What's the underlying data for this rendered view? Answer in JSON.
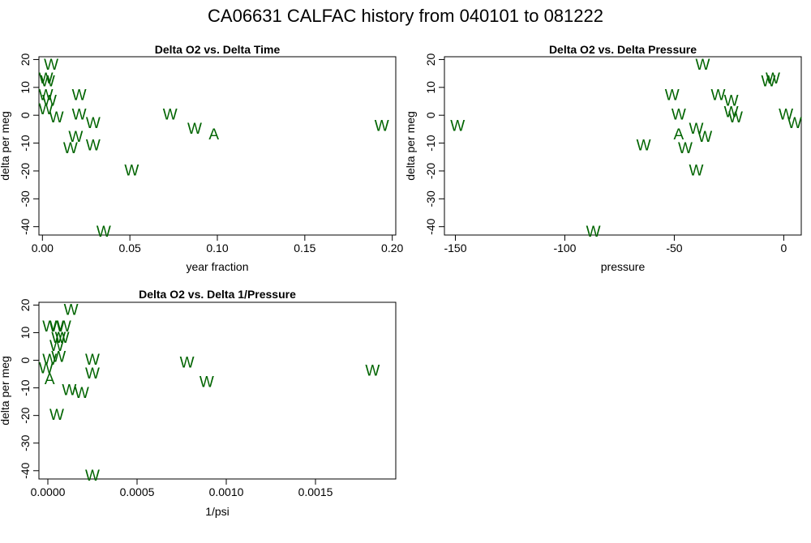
{
  "title": "CA06631   CALFAC history from  040101  to  081222",
  "colors": {
    "points": "#006400",
    "axes": "#000000"
  },
  "chart_data": [
    {
      "type": "scatter",
      "title": "Delta O2 vs. Delta Time",
      "xlabel": "year fraction",
      "ylabel": "delta per meg",
      "xlim": [
        -0.002,
        0.202
      ],
      "ylim": [
        -43,
        21
      ],
      "xticks": [
        0.0,
        0.05,
        0.1,
        0.15,
        0.2
      ],
      "xtick_labels": [
        "0.00",
        "0.05",
        "0.10",
        "0.15",
        "0.20"
      ],
      "yticks": [
        -40,
        -30,
        -20,
        -10,
        0,
        10,
        20
      ],
      "ytick_labels": [
        "-40",
        "-30",
        "-20",
        "-10",
        "0",
        "10",
        "20"
      ],
      "points": [
        {
          "x": 0.005,
          "y": 18,
          "label": "W"
        },
        {
          "x": 0.002,
          "y": 13,
          "label": "W"
        },
        {
          "x": 0.003,
          "y": 12,
          "label": "W"
        },
        {
          "x": 0.002,
          "y": 7,
          "label": "W"
        },
        {
          "x": 0.004,
          "y": 5,
          "label": "W"
        },
        {
          "x": 0.002,
          "y": 2,
          "label": "W"
        },
        {
          "x": 0.008,
          "y": -1,
          "label": "W"
        },
        {
          "x": 0.021,
          "y": 7,
          "label": "W"
        },
        {
          "x": 0.021,
          "y": 0,
          "label": "W"
        },
        {
          "x": 0.029,
          "y": -3,
          "label": "W"
        },
        {
          "x": 0.019,
          "y": -8,
          "label": "W"
        },
        {
          "x": 0.016,
          "y": -12,
          "label": "W"
        },
        {
          "x": 0.029,
          "y": -11,
          "label": "W"
        },
        {
          "x": 0.051,
          "y": -20,
          "label": "W"
        },
        {
          "x": 0.035,
          "y": -42,
          "label": "W"
        },
        {
          "x": 0.073,
          "y": 0,
          "label": "W"
        },
        {
          "x": 0.087,
          "y": -5,
          "label": "W"
        },
        {
          "x": 0.098,
          "y": -7,
          "label": "A"
        },
        {
          "x": 0.194,
          "y": -4,
          "label": "W"
        }
      ]
    },
    {
      "type": "scatter",
      "title": "Delta O2 vs. Delta Pressure",
      "xlabel": "pressure",
      "ylabel": "delta per meg",
      "xlim": [
        -155,
        8
      ],
      "ylim": [
        -43,
        21
      ],
      "xticks": [
        -150,
        -100,
        -50,
        0
      ],
      "xtick_labels": [
        "-150",
        "-100",
        "-50",
        "0"
      ],
      "yticks": [
        -40,
        -30,
        -20,
        -10,
        0,
        10,
        20
      ],
      "ytick_labels": [
        "-40",
        "-30",
        "-20",
        "-10",
        "0",
        "10",
        "20"
      ],
      "points": [
        {
          "x": -149,
          "y": -4,
          "label": "W"
        },
        {
          "x": -87,
          "y": -42,
          "label": "W"
        },
        {
          "x": -64,
          "y": -11,
          "label": "W"
        },
        {
          "x": -51,
          "y": 7,
          "label": "W"
        },
        {
          "x": -48,
          "y": 0,
          "label": "W"
        },
        {
          "x": -48,
          "y": -7,
          "label": "A"
        },
        {
          "x": -45,
          "y": -12,
          "label": "W"
        },
        {
          "x": -40,
          "y": -5,
          "label": "W"
        },
        {
          "x": -40,
          "y": -20,
          "label": "W"
        },
        {
          "x": -36,
          "y": -8,
          "label": "W"
        },
        {
          "x": -37,
          "y": 18,
          "label": "W"
        },
        {
          "x": -30,
          "y": 7,
          "label": "W"
        },
        {
          "x": -24,
          "y": 5,
          "label": "W"
        },
        {
          "x": -24,
          "y": 1,
          "label": "W"
        },
        {
          "x": -22,
          "y": -1,
          "label": "W"
        },
        {
          "x": -7,
          "y": 12,
          "label": "W"
        },
        {
          "x": -5,
          "y": 13,
          "label": "W"
        },
        {
          "x": 1,
          "y": 0,
          "label": "W"
        },
        {
          "x": 5,
          "y": -3,
          "label": "W"
        }
      ]
    },
    {
      "type": "scatter",
      "title": "Delta O2 vs. Delta 1/Pressure",
      "xlabel": "1/psi",
      "ylabel": "delta per meg",
      "xlim": [
        -5e-05,
        0.00195
      ],
      "ylim": [
        -43,
        21
      ],
      "xticks": [
        0.0,
        0.0005,
        0.001,
        0.0015
      ],
      "xtick_labels": [
        "0.0000",
        "0.0005",
        "0.0010",
        "0.0015"
      ],
      "yticks": [
        -40,
        -30,
        -20,
        -10,
        0,
        10,
        20
      ],
      "ytick_labels": [
        "-40",
        "-30",
        "-20",
        "-10",
        "0",
        "10",
        "20"
      ],
      "points": [
        {
          "x": 0.00013,
          "y": 18,
          "label": "W"
        },
        {
          "x": 1e-05,
          "y": 12,
          "label": "W"
        },
        {
          "x": 5e-05,
          "y": 12,
          "label": "W"
        },
        {
          "x": 9e-05,
          "y": 12,
          "label": "W"
        },
        {
          "x": 6e-05,
          "y": 8,
          "label": "W"
        },
        {
          "x": 8e-05,
          "y": 8,
          "label": "W"
        },
        {
          "x": 5e-05,
          "y": 5,
          "label": "W"
        },
        {
          "x": 1e-05,
          "y": 0,
          "label": "W"
        },
        {
          "x": 6e-05,
          "y": 1,
          "label": "W"
        },
        {
          "x": -1e-05,
          "y": -3,
          "label": "W"
        },
        {
          "x": 1e-05,
          "y": -7,
          "label": "A"
        },
        {
          "x": 0.00012,
          "y": -11,
          "label": "W"
        },
        {
          "x": 0.00019,
          "y": -12,
          "label": "W"
        },
        {
          "x": 5e-05,
          "y": -20,
          "label": "W"
        },
        {
          "x": 0.00025,
          "y": 0,
          "label": "W"
        },
        {
          "x": 0.00025,
          "y": -5,
          "label": "W"
        },
        {
          "x": 0.00025,
          "y": -42,
          "label": "W"
        },
        {
          "x": 0.00078,
          "y": -1,
          "label": "W"
        },
        {
          "x": 0.00089,
          "y": -8,
          "label": "W"
        },
        {
          "x": 0.00182,
          "y": -4,
          "label": "W"
        }
      ]
    }
  ]
}
